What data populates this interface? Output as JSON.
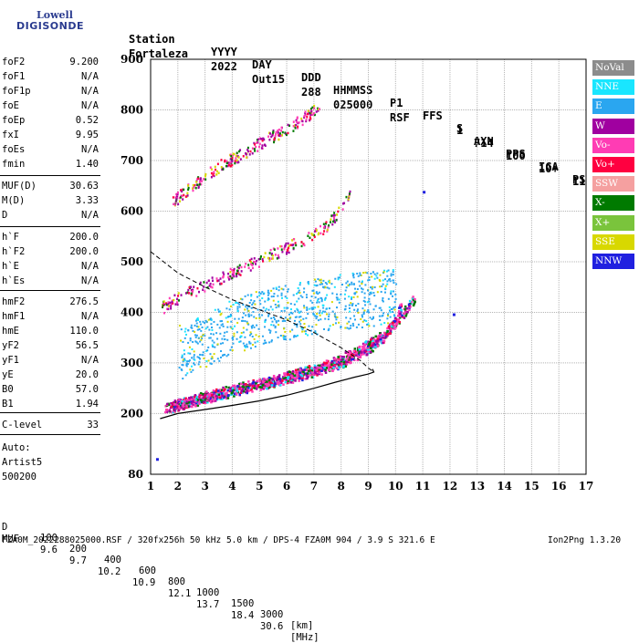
{
  "logo": {
    "top": "Lowell",
    "bottom": "DIGISONDE"
  },
  "header": {
    "line1": [
      "Station",
      "YYYY",
      "DAY",
      "DDD",
      "HHMMSS",
      "P1",
      "FFS",
      "S",
      "AXN",
      "PPS",
      "IGA",
      "PS"
    ],
    "line2": [
      "Fortaleza",
      "2022",
      "Out15",
      "288",
      "025000",
      "RSF",
      "1",
      "714",
      "100",
      "10+",
      "11"
    ]
  },
  "params": [
    {
      "label": "foF2",
      "value": "9.200"
    },
    {
      "label": "foF1",
      "value": "N/A"
    },
    {
      "label": "foF1p",
      "value": "N/A"
    },
    {
      "label": "foE",
      "value": "N/A"
    },
    {
      "label": "foEp",
      "value": "0.52"
    },
    {
      "label": "fxI",
      "value": "9.95"
    },
    {
      "label": "foEs",
      "value": "N/A"
    },
    {
      "label": "fmin",
      "value": "1.40"
    },
    {
      "label": "MUF(D)",
      "value": "30.63"
    },
    {
      "label": "M(D)",
      "value": "3.33"
    },
    {
      "label": "D",
      "value": "N/A"
    },
    {
      "label": "h`F",
      "value": "200.0"
    },
    {
      "label": "h`F2",
      "value": "200.0"
    },
    {
      "label": "h`E",
      "value": "N/A"
    },
    {
      "label": "h`Es",
      "value": "N/A"
    },
    {
      "label": "hmF2",
      "value": "276.5"
    },
    {
      "label": "hmF1",
      "value": "N/A"
    },
    {
      "label": "hmE",
      "value": "110.0"
    },
    {
      "label": "yF2",
      "value": "56.5"
    },
    {
      "label": "yF1",
      "value": "N/A"
    },
    {
      "label": "yE",
      "value": "20.0"
    },
    {
      "label": "B0",
      "value": "57.0"
    },
    {
      "label": "B1",
      "value": "1.94"
    },
    {
      "label": "C-level",
      "value": "33"
    }
  ],
  "scaling": {
    "line1": "Auto:",
    "line2": "Artist5",
    "line3": "500200"
  },
  "legend": [
    {
      "label": "NoVal",
      "color": "#8c8c8c",
      "text_color": "#ffffff"
    },
    {
      "label": "NNE",
      "color": "#19e6ff",
      "text_color": "#ffffff"
    },
    {
      "label": "E",
      "color": "#2aa6f0",
      "text_color": "#ffffff"
    },
    {
      "label": "W",
      "color": "#a000a0",
      "text_color": "#ffffff"
    },
    {
      "label": "Vo-",
      "color": "#ff3cb4",
      "text_color": "#ffffff"
    },
    {
      "label": "Vo+",
      "color": "#ff0040",
      "text_color": "#ffffff"
    },
    {
      "label": "SSW",
      "color": "#f5a0a0",
      "text_color": "#ffffff"
    },
    {
      "label": "X-",
      "color": "#007a00",
      "text_color": "#ffffff"
    },
    {
      "label": "X+",
      "color": "#7ac43c",
      "text_color": "#ffffff"
    },
    {
      "label": "SSE",
      "color": "#d8d800",
      "text_color": "#ffffff"
    },
    {
      "label": "NNW",
      "color": "#2020e0",
      "text_color": "#ffffff"
    }
  ],
  "footer": {
    "d_row": [
      "D",
      "100",
      "200",
      "400",
      "600",
      "800",
      "1000",
      "1500",
      "3000",
      "[km]"
    ],
    "muf_row": [
      "MUF",
      "9.6",
      "9.7",
      "10.2",
      "10.9",
      "12.1",
      "13.7",
      "18.4",
      "30.6",
      "[MHz]"
    ],
    "info": "FZA0M_2022288025000.RSF / 320fx256h 50 kHz 5.0 km / DPS-4 FZA0M 904 / 3.9 S 321.6 E",
    "version": "Ion2Png 1.3.20"
  },
  "chart_data": {
    "type": "scatter",
    "title": "",
    "xlabel": "",
    "ylabel": "",
    "xlim": [
      1,
      17
    ],
    "ylim": [
      80,
      900
    ],
    "x_ticks": [
      1,
      2,
      3,
      4,
      5,
      6,
      7,
      8,
      9,
      10,
      11,
      12,
      13,
      14,
      15,
      16,
      17
    ],
    "y_ticks": [
      80,
      200,
      300,
      400,
      500,
      600,
      700,
      800,
      900
    ],
    "grid": true,
    "profile_curve": [
      [
        1.35,
        190
      ],
      [
        2,
        200
      ],
      [
        3,
        208
      ],
      [
        4,
        216
      ],
      [
        5,
        225
      ],
      [
        6,
        236
      ],
      [
        7,
        250
      ],
      [
        7.8,
        262
      ],
      [
        8.5,
        272
      ],
      [
        9.0,
        278
      ],
      [
        9.2,
        282
      ],
      [
        9.15,
        288
      ]
    ],
    "dashed_curve": [
      [
        1.0,
        520
      ],
      [
        2,
        478
      ],
      [
        3,
        450
      ],
      [
        4,
        425
      ],
      [
        5,
        405
      ],
      [
        6,
        385
      ],
      [
        7,
        360
      ],
      [
        8,
        330
      ],
      [
        8.7,
        305
      ],
      [
        9.0,
        290
      ],
      [
        9.2,
        282
      ]
    ],
    "traces": [
      {
        "name": "O-trace F2",
        "points": [
          [
            1.5,
            210
          ],
          [
            2,
            218
          ],
          [
            3,
            232
          ],
          [
            4,
            245
          ],
          [
            5,
            258
          ],
          [
            6,
            270
          ],
          [
            7,
            285
          ],
          [
            8,
            302
          ],
          [
            8.5,
            315
          ],
          [
            9,
            330
          ],
          [
            9.5,
            350
          ],
          [
            10,
            385
          ],
          [
            10.2,
            420
          ]
        ]
      },
      {
        "name": "X-trace F2",
        "points": [
          [
            1.7,
            215
          ],
          [
            2.5,
            228
          ],
          [
            3.5,
            242
          ],
          [
            4.5,
            255
          ],
          [
            5.5,
            268
          ],
          [
            6.5,
            282
          ],
          [
            7.5,
            298
          ],
          [
            8.5,
            322
          ],
          [
            9.5,
            355
          ],
          [
            10.2,
            395
          ],
          [
            10.7,
            430
          ]
        ]
      },
      {
        "name": "2nd hop",
        "points": [
          [
            1.4,
            410
          ],
          [
            2,
            430
          ],
          [
            3,
            455
          ],
          [
            4,
            480
          ],
          [
            5,
            505
          ],
          [
            6,
            530
          ],
          [
            7,
            555
          ],
          [
            7.5,
            575
          ],
          [
            8,
            610
          ],
          [
            8.3,
            640
          ]
        ]
      },
      {
        "name": "3rd hop",
        "points": [
          [
            1.8,
            620
          ],
          [
            2.5,
            650
          ],
          [
            3.5,
            690
          ],
          [
            4.5,
            720
          ],
          [
            5.5,
            750
          ],
          [
            6.5,
            780
          ],
          [
            7.2,
            810
          ]
        ]
      },
      {
        "name": "spread cloud",
        "points": [
          [
            2,
            300
          ],
          [
            3,
            320
          ],
          [
            4,
            350
          ],
          [
            5,
            370
          ],
          [
            6,
            380
          ],
          [
            7,
            390
          ],
          [
            8,
            400
          ],
          [
            9,
            405
          ],
          [
            10,
            410
          ]
        ]
      }
    ],
    "isolated_points": [
      [
        1.2,
        112
      ],
      [
        11,
        640
      ],
      [
        12.1,
        398
      ]
    ]
  }
}
